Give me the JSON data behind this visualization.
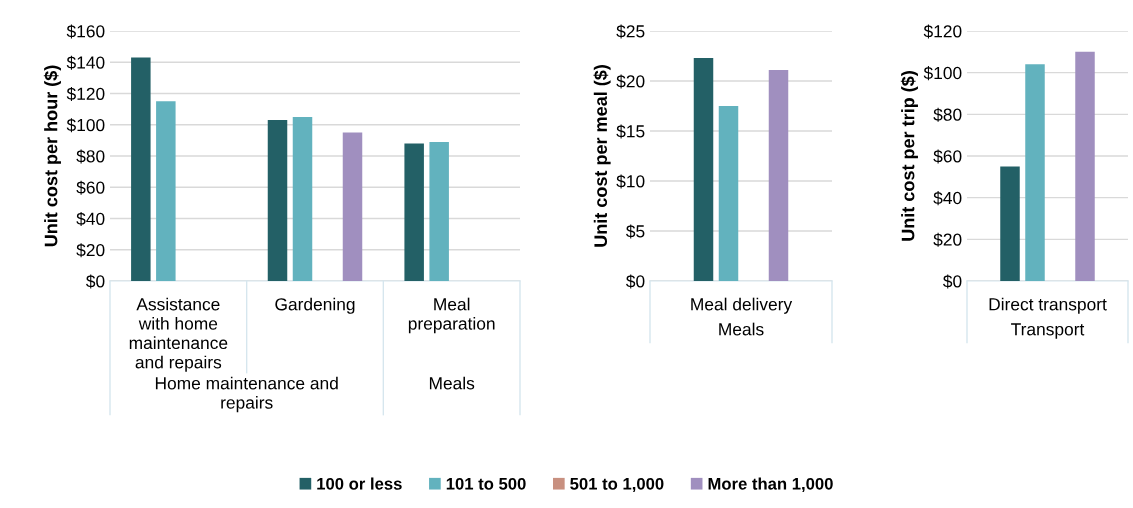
{
  "chart_data": [
    {
      "type": "bar",
      "ylabel": "Unit cost per hour ($)",
      "categories": [
        "Assistance with home maintenance and repairs",
        "Gardening",
        "Meal preparation"
      ],
      "series": [
        {
          "name": "100 or less",
          "color": "#236066",
          "values": [
            143,
            103,
            88
          ]
        },
        {
          "name": "101 to 500",
          "color": "#62b2be",
          "values": [
            115,
            105,
            89
          ]
        },
        {
          "name": "501 to 1,000",
          "color": "#c89080",
          "values": [
            null,
            null,
            null
          ]
        },
        {
          "name": "More than 1,000",
          "color": "#a08fbf",
          "values": [
            null,
            95,
            null
          ]
        }
      ],
      "annotations": [
        "Home maintenance and repairs",
        "Meals"
      ],
      "ylim": [
        0,
        160
      ],
      "yticks": [
        {
          "value": 0,
          "label": "$0"
        },
        {
          "value": 20,
          "label": "$20"
        },
        {
          "value": 40,
          "label": "$40"
        },
        {
          "value": 60,
          "label": "$60"
        },
        {
          "value": 80,
          "label": "$80"
        },
        {
          "value": 100,
          "label": "$100"
        },
        {
          "value": 120,
          "label": "$120"
        },
        {
          "value": 140,
          "label": "$140"
        },
        {
          "value": 160,
          "label": "$160"
        }
      ],
      "grid": "y",
      "legend": "bottom"
    },
    {
      "type": "bar",
      "ylabel": "Unit cost per meal ($)",
      "categories": [
        "Meal delivery"
      ],
      "series": [
        {
          "color": "#236066",
          "values": [
            22.3
          ]
        },
        {
          "color": "#62b2be",
          "values": [
            17.5
          ]
        },
        {
          "color": "#c89080",
          "values": [
            null
          ]
        },
        {
          "color": "#a08fbf",
          "values": [
            21.1
          ]
        }
      ],
      "annotations": [
        "Meals"
      ],
      "ylim": [
        0,
        25
      ],
      "yticks": [
        {
          "value": 0,
          "label": "$0"
        },
        {
          "value": 5,
          "label": "$5"
        },
        {
          "value": 10,
          "label": "$10"
        },
        {
          "value": 15,
          "label": "$15"
        },
        {
          "value": 20,
          "label": "$20"
        },
        {
          "value": 25,
          "label": "$25"
        }
      ],
      "grid": "y"
    },
    {
      "type": "bar",
      "ylabel": "Unit cost per trip ($)",
      "categories": [
        "Direct transport"
      ],
      "series": [
        {
          "color": "#236066",
          "values": [
            55
          ]
        },
        {
          "color": "#62b2be",
          "values": [
            104
          ]
        },
        {
          "color": "#c89080",
          "values": [
            null
          ]
        },
        {
          "color": "#a08fbf",
          "values": [
            110
          ]
        }
      ],
      "annotations": [
        "Transport"
      ],
      "ylim": [
        0,
        120
      ],
      "yticks": [
        {
          "value": 0,
          "label": "$0"
        },
        {
          "value": 20,
          "label": "$20"
        },
        {
          "value": 40,
          "label": "$40"
        },
        {
          "value": 60,
          "label": "$60"
        },
        {
          "value": 80,
          "label": "$80"
        },
        {
          "value": 100,
          "label": "$100"
        },
        {
          "value": 120,
          "label": "$120"
        }
      ],
      "grid": "y"
    }
  ]
}
